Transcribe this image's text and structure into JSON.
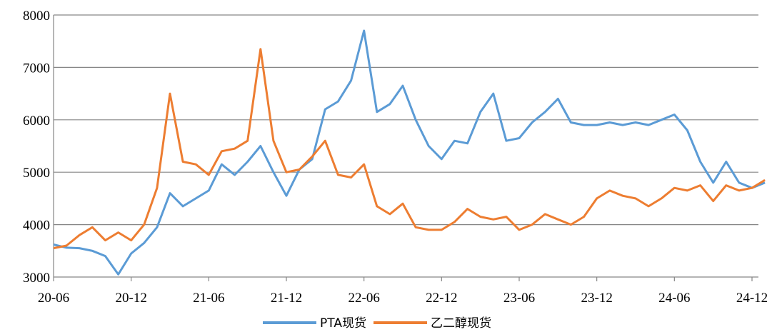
{
  "chart_data": {
    "type": "line",
    "title": "",
    "xlabel": "",
    "ylabel": "",
    "ylim": [
      3000,
      8000
    ],
    "yticks": [
      3000,
      4000,
      5000,
      6000,
      7000,
      8000
    ],
    "xticks": [
      "20-06",
      "20-12",
      "21-06",
      "21-12",
      "22-06",
      "22-12",
      "23-06",
      "23-12",
      "24-06",
      "24-12"
    ],
    "grid": "horizontal",
    "legend_position": "bottom",
    "series": [
      {
        "name": "PTA现货",
        "color": "#5b9bd5",
        "points": [
          [
            "20-06",
            3620
          ],
          [
            "20-07",
            3560
          ],
          [
            "20-08",
            3550
          ],
          [
            "20-09",
            3500
          ],
          [
            "20-10",
            3400
          ],
          [
            "20-11",
            3050
          ],
          [
            "20-12",
            3450
          ],
          [
            "21-01",
            3650
          ],
          [
            "21-02",
            3950
          ],
          [
            "21-03",
            4600
          ],
          [
            "21-04",
            4350
          ],
          [
            "21-05",
            4500
          ],
          [
            "21-06",
            4650
          ],
          [
            "21-07",
            5150
          ],
          [
            "21-08",
            4950
          ],
          [
            "21-09",
            5200
          ],
          [
            "21-10",
            5500
          ],
          [
            "21-11",
            5000
          ],
          [
            "21-12",
            4550
          ],
          [
            "22-01",
            5050
          ],
          [
            "22-02",
            5250
          ],
          [
            "22-03",
            6200
          ],
          [
            "22-04",
            6350
          ],
          [
            "22-05",
            6750
          ],
          [
            "22-06",
            7700
          ],
          [
            "22-07",
            6150
          ],
          [
            "22-08",
            6300
          ],
          [
            "22-09",
            6650
          ],
          [
            "22-10",
            6000
          ],
          [
            "22-11",
            5500
          ],
          [
            "22-12",
            5250
          ],
          [
            "23-01",
            5600
          ],
          [
            "23-02",
            5550
          ],
          [
            "23-03",
            6150
          ],
          [
            "23-04",
            6500
          ],
          [
            "23-05",
            5600
          ],
          [
            "23-06",
            5650
          ],
          [
            "23-07",
            5950
          ],
          [
            "23-08",
            6150
          ],
          [
            "23-09",
            6400
          ],
          [
            "23-10",
            5950
          ],
          [
            "23-11",
            5900
          ],
          [
            "23-12",
            5900
          ],
          [
            "24-01",
            5950
          ],
          [
            "24-02",
            5900
          ],
          [
            "24-03",
            5950
          ],
          [
            "24-04",
            5900
          ],
          [
            "24-05",
            6000
          ],
          [
            "24-06",
            6100
          ],
          [
            "24-07",
            5800
          ],
          [
            "24-08",
            5200
          ],
          [
            "24-09",
            4800
          ],
          [
            "24-10",
            5200
          ],
          [
            "24-11",
            4800
          ],
          [
            "24-12",
            4700
          ],
          [
            "25-01",
            4800
          ]
        ]
      },
      {
        "name": "乙二醇现货",
        "color": "#ed7d31",
        "points": [
          [
            "20-06",
            3550
          ],
          [
            "20-07",
            3600
          ],
          [
            "20-08",
            3800
          ],
          [
            "20-09",
            3950
          ],
          [
            "20-10",
            3700
          ],
          [
            "20-11",
            3850
          ],
          [
            "20-12",
            3700
          ],
          [
            "21-01",
            4000
          ],
          [
            "21-02",
            4700
          ],
          [
            "21-03",
            6500
          ],
          [
            "21-04",
            5200
          ],
          [
            "21-05",
            5150
          ],
          [
            "21-06",
            4950
          ],
          [
            "21-07",
            5400
          ],
          [
            "21-08",
            5450
          ],
          [
            "21-09",
            5600
          ],
          [
            "21-10",
            7350
          ],
          [
            "21-11",
            5600
          ],
          [
            "21-12",
            5000
          ],
          [
            "22-01",
            5050
          ],
          [
            "22-02",
            5300
          ],
          [
            "22-03",
            5600
          ],
          [
            "22-04",
            4950
          ],
          [
            "22-05",
            4900
          ],
          [
            "22-06",
            5150
          ],
          [
            "22-07",
            4350
          ],
          [
            "22-08",
            4200
          ],
          [
            "22-09",
            4400
          ],
          [
            "22-10",
            3950
          ],
          [
            "22-11",
            3900
          ],
          [
            "22-12",
            3900
          ],
          [
            "23-01",
            4050
          ],
          [
            "23-02",
            4300
          ],
          [
            "23-03",
            4150
          ],
          [
            "23-04",
            4100
          ],
          [
            "23-05",
            4150
          ],
          [
            "23-06",
            3900
          ],
          [
            "23-07",
            4000
          ],
          [
            "23-08",
            4200
          ],
          [
            "23-09",
            4100
          ],
          [
            "23-10",
            4000
          ],
          [
            "23-11",
            4150
          ],
          [
            "23-12",
            4500
          ],
          [
            "24-01",
            4650
          ],
          [
            "24-02",
            4550
          ],
          [
            "24-03",
            4500
          ],
          [
            "24-04",
            4350
          ],
          [
            "24-05",
            4500
          ],
          [
            "24-06",
            4700
          ],
          [
            "24-07",
            4650
          ],
          [
            "24-08",
            4750
          ],
          [
            "24-09",
            4450
          ],
          [
            "24-10",
            4750
          ],
          [
            "24-11",
            4650
          ],
          [
            "24-12",
            4700
          ],
          [
            "25-01",
            4850
          ]
        ]
      }
    ]
  }
}
